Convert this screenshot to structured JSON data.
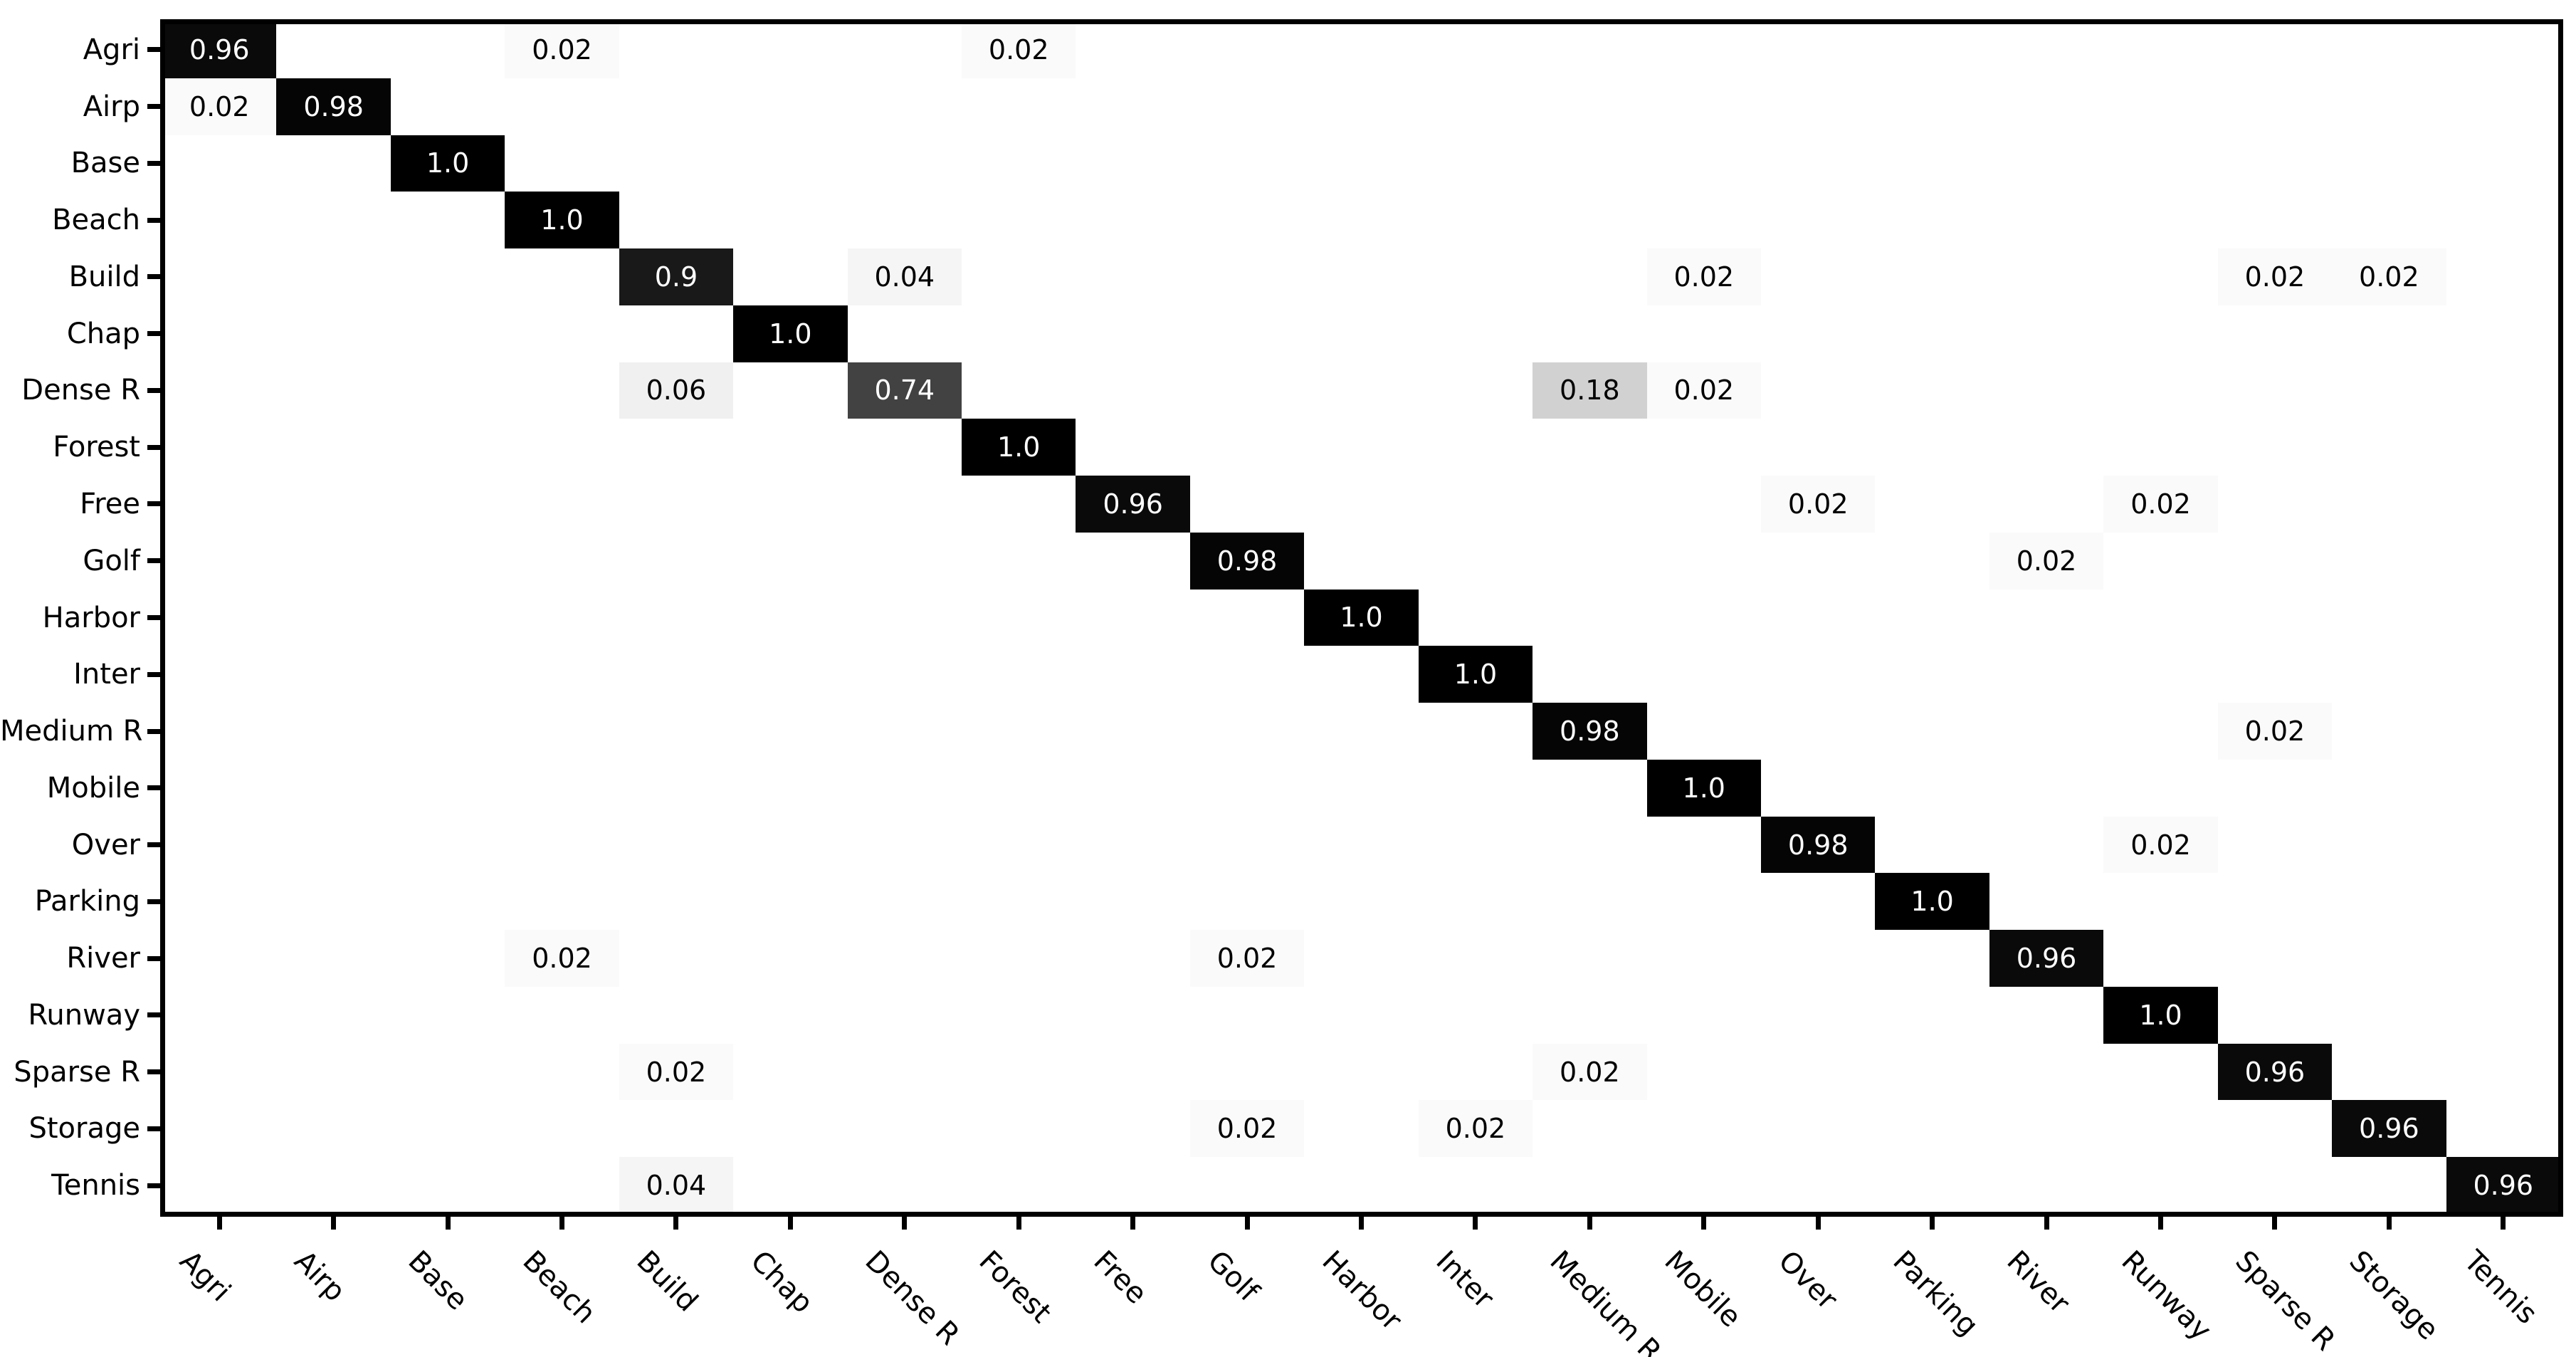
{
  "figure": {
    "background_color": "#ffffff",
    "axis_color": "#000000",
    "title": ""
  },
  "chart_data": {
    "type": "heatmap",
    "subtype": "confusion-matrix",
    "title": "",
    "xlabel": "",
    "ylabel": "",
    "grid": false,
    "colormap": "Greys",
    "vmin": 0,
    "vmax": 1,
    "value_display": "blank when 0; one decimal when trailing zero (e.g. 1.0, 0.9); two decimals otherwise",
    "classes": [
      "Agri",
      "Airp",
      "Base",
      "Beach",
      "Build",
      "Chap",
      "Dense R",
      "Forest",
      "Free",
      "Golf",
      "Harbor",
      "Inter",
      "Medium R",
      "Mobile",
      "Over",
      "Parking",
      "River",
      "Runway",
      "Sparse R",
      "Storage",
      "Tennis"
    ],
    "matrix": [
      [
        0.96,
        0,
        0,
        0.02,
        0,
        0,
        0,
        0.02,
        0,
        0,
        0,
        0,
        0,
        0,
        0,
        0,
        0,
        0,
        0,
        0,
        0
      ],
      [
        0.02,
        0.98,
        0,
        0,
        0,
        0,
        0,
        0,
        0,
        0,
        0,
        0,
        0,
        0,
        0,
        0,
        0,
        0,
        0,
        0,
        0
      ],
      [
        0,
        0,
        1.0,
        0,
        0,
        0,
        0,
        0,
        0,
        0,
        0,
        0,
        0,
        0,
        0,
        0,
        0,
        0,
        0,
        0,
        0
      ],
      [
        0,
        0,
        0,
        1.0,
        0,
        0,
        0,
        0,
        0,
        0,
        0,
        0,
        0,
        0,
        0,
        0,
        0,
        0,
        0,
        0,
        0
      ],
      [
        0,
        0,
        0,
        0,
        0.9,
        0,
        0.04,
        0,
        0,
        0,
        0,
        0,
        0,
        0.02,
        0,
        0,
        0,
        0,
        0.02,
        0.02,
        0
      ],
      [
        0,
        0,
        0,
        0,
        0,
        1.0,
        0,
        0,
        0,
        0,
        0,
        0,
        0,
        0,
        0,
        0,
        0,
        0,
        0,
        0,
        0
      ],
      [
        0,
        0,
        0,
        0,
        0.06,
        0,
        0.74,
        0,
        0,
        0,
        0,
        0,
        0.18,
        0.02,
        0,
        0,
        0,
        0,
        0,
        0,
        0
      ],
      [
        0,
        0,
        0,
        0,
        0,
        0,
        0,
        1.0,
        0,
        0,
        0,
        0,
        0,
        0,
        0,
        0,
        0,
        0,
        0,
        0,
        0
      ],
      [
        0,
        0,
        0,
        0,
        0,
        0,
        0,
        0,
        0.96,
        0,
        0,
        0,
        0,
        0,
        0.02,
        0,
        0,
        0.02,
        0,
        0,
        0
      ],
      [
        0,
        0,
        0,
        0,
        0,
        0,
        0,
        0,
        0,
        0.98,
        0,
        0,
        0,
        0,
        0,
        0,
        0.02,
        0,
        0,
        0,
        0
      ],
      [
        0,
        0,
        0,
        0,
        0,
        0,
        0,
        0,
        0,
        0,
        1.0,
        0,
        0,
        0,
        0,
        0,
        0,
        0,
        0,
        0,
        0
      ],
      [
        0,
        0,
        0,
        0,
        0,
        0,
        0,
        0,
        0,
        0,
        0,
        1.0,
        0,
        0,
        0,
        0,
        0,
        0,
        0,
        0,
        0
      ],
      [
        0,
        0,
        0,
        0,
        0,
        0,
        0,
        0,
        0,
        0,
        0,
        0,
        0.98,
        0,
        0,
        0,
        0,
        0,
        0.02,
        0,
        0
      ],
      [
        0,
        0,
        0,
        0,
        0,
        0,
        0,
        0,
        0,
        0,
        0,
        0,
        0,
        1.0,
        0,
        0,
        0,
        0,
        0,
        0,
        0
      ],
      [
        0,
        0,
        0,
        0,
        0,
        0,
        0,
        0,
        0,
        0,
        0,
        0,
        0,
        0,
        0.98,
        0,
        0,
        0.02,
        0,
        0,
        0
      ],
      [
        0,
        0,
        0,
        0,
        0,
        0,
        0,
        0,
        0,
        0,
        0,
        0,
        0,
        0,
        0,
        1.0,
        0,
        0,
        0,
        0,
        0
      ],
      [
        0,
        0,
        0,
        0.02,
        0,
        0,
        0,
        0,
        0,
        0.02,
        0,
        0,
        0,
        0,
        0,
        0,
        0.96,
        0,
        0,
        0,
        0
      ],
      [
        0,
        0,
        0,
        0,
        0,
        0,
        0,
        0,
        0,
        0,
        0,
        0,
        0,
        0,
        0,
        0,
        0,
        1.0,
        0,
        0,
        0
      ],
      [
        0,
        0,
        0,
        0,
        0.02,
        0,
        0,
        0,
        0,
        0,
        0,
        0,
        0.02,
        0,
        0,
        0,
        0,
        0,
        0.96,
        0,
        0
      ],
      [
        0,
        0,
        0,
        0,
        0,
        0,
        0,
        0,
        0,
        0.02,
        0,
        0.02,
        0,
        0,
        0,
        0,
        0,
        0,
        0,
        0.96,
        0
      ],
      [
        0,
        0,
        0,
        0,
        0.04,
        0,
        0,
        0,
        0,
        0,
        0,
        0,
        0,
        0,
        0,
        0,
        0,
        0,
        0,
        0,
        0.96
      ]
    ],
    "cell_text_colors": {
      "on_dark": "#ffffff",
      "on_light": "#000000",
      "threshold": 0.5
    },
    "legend": null
  }
}
